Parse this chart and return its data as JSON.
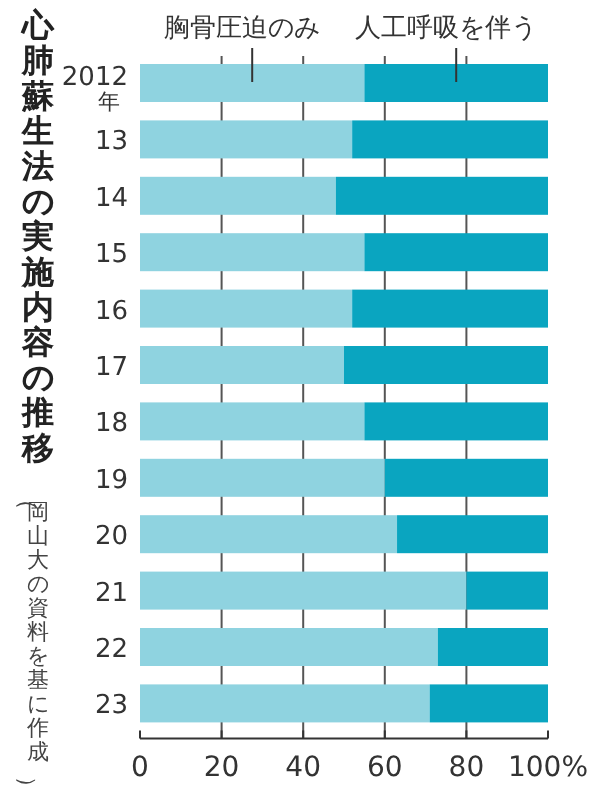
{
  "chart_data": {
    "type": "bar",
    "orientation": "horizontal",
    "stacked": true,
    "title": "心肺蘇生法の実施内容の推移",
    "subtitle": "（岡山大の資料を基に作成）",
    "categories": [
      "2012年",
      "13",
      "14",
      "15",
      "16",
      "17",
      "18",
      "19",
      "20",
      "21",
      "22",
      "23"
    ],
    "series": [
      {
        "name": "胸骨圧迫のみ",
        "color": "#8fd3e0",
        "values": [
          55,
          52,
          48,
          55,
          52,
          50,
          55,
          60,
          63,
          80,
          73,
          71
        ]
      },
      {
        "name": "人工呼吸を伴う",
        "color": "#0aa5c0",
        "values": [
          45,
          48,
          52,
          45,
          48,
          50,
          45,
          40,
          37,
          20,
          27,
          29
        ]
      }
    ],
    "xlim": [
      0,
      100
    ],
    "xticks": [
      0,
      20,
      40,
      60,
      80,
      {
        "value": 100,
        "label": "100%"
      }
    ],
    "grid": "x",
    "legend": "top"
  }
}
